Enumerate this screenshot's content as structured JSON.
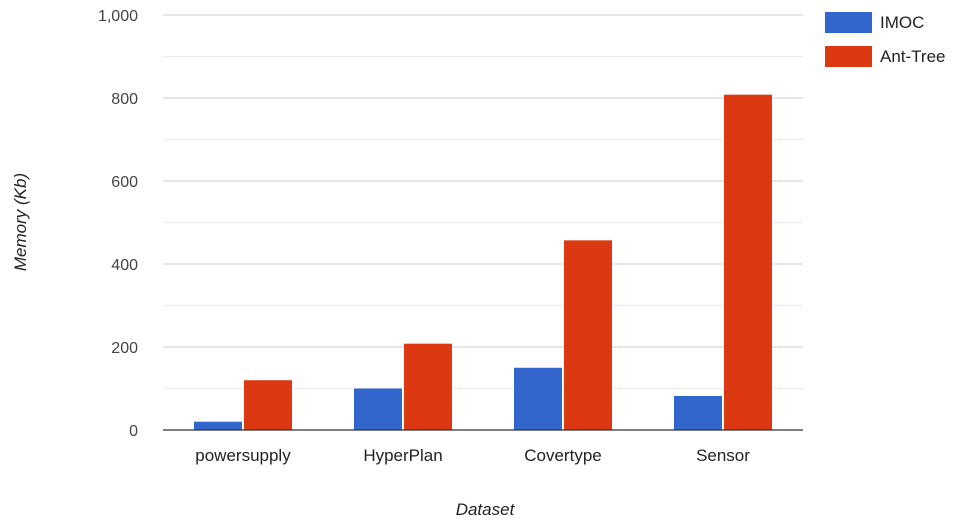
{
  "chart_data": {
    "type": "bar",
    "title": "",
    "xlabel": "Dataset",
    "ylabel": "Memory (Kb)",
    "categories": [
      "powersupply",
      "HyperPlan",
      "Covertype",
      "Sensor"
    ],
    "series": [
      {
        "name": "IMOC",
        "values": [
          20,
          100,
          150,
          82
        ],
        "color": "#3366cc"
      },
      {
        "name": "Ant-Tree",
        "values": [
          120,
          208,
          457,
          808
        ],
        "color": "#dc3912"
      }
    ],
    "ylim": [
      0,
      1000
    ],
    "yticks": [
      0,
      200,
      400,
      600,
      800,
      1000
    ],
    "ytick_labels": [
      "0",
      "200",
      "400",
      "600",
      "800",
      "1,000"
    ],
    "grid": true,
    "legend": "top-right"
  }
}
